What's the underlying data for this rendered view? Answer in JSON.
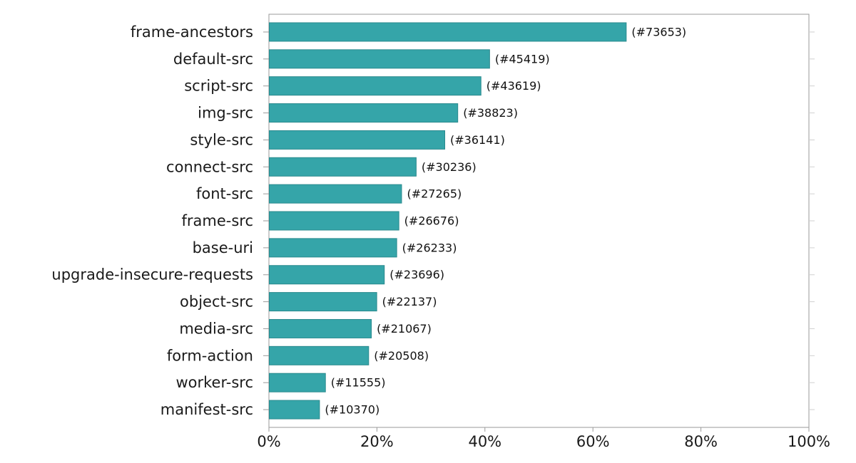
{
  "chart_data": {
    "type": "bar",
    "orientation": "horizontal",
    "title": "",
    "xlabel": "",
    "ylabel": "",
    "xlim": [
      0,
      100
    ],
    "x_ticks": [
      0,
      20,
      40,
      60,
      80,
      100
    ],
    "x_tick_labels": [
      "0%",
      "20%",
      "40%",
      "60%",
      "80%",
      "100%"
    ],
    "grid": false,
    "bar_color": "#35a5a9",
    "bar_edge_color": "#2a8a8e",
    "categories": [
      "frame-ancestors",
      "default-src",
      "script-src",
      "img-src",
      "style-src",
      "connect-src",
      "font-src",
      "frame-src",
      "base-uri",
      "upgrade-insecure-requests",
      "object-src",
      "media-src",
      "form-action",
      "worker-src",
      "manifest-src"
    ],
    "values": [
      66.1,
      40.8,
      39.2,
      34.9,
      32.5,
      27.2,
      24.5,
      24.0,
      23.6,
      21.3,
      19.9,
      18.9,
      18.4,
      10.4,
      9.3
    ],
    "data_labels": [
      "(#73653)",
      "(#45419)",
      "(#43619)",
      "(#38823)",
      "(#36141)",
      "(#30236)",
      "(#27265)",
      "(#26676)",
      "(#26233)",
      "(#23696)",
      "(#22137)",
      "(#21067)",
      "(#20508)",
      "(#11555)",
      "(#10370)"
    ]
  }
}
